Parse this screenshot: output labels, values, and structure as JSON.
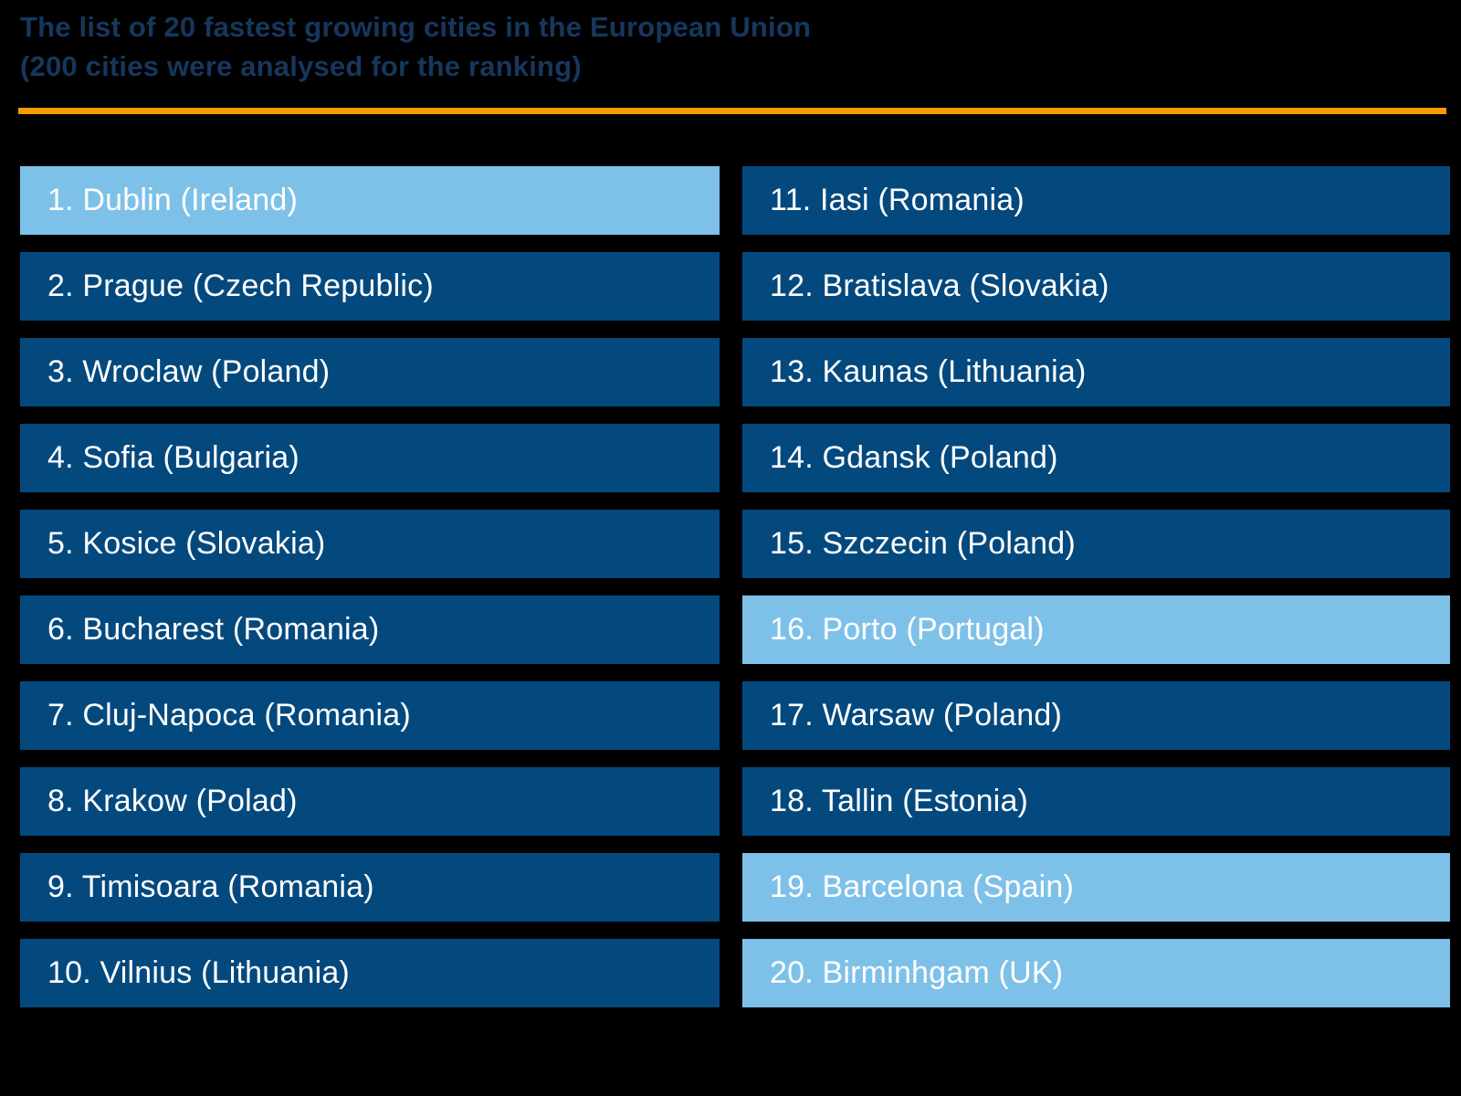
{
  "header": {
    "title_line1": "The list of 20 fastest growing cities in the European Union",
    "title_line2": "(200 cities were analysed for the ranking)"
  },
  "colors": {
    "background": "#000000",
    "title_text": "#17375D",
    "divider_orange": "#F59C00",
    "bar_dark_blue": "#04497E",
    "bar_light_blue": "#7EC1E8",
    "bar_text": "#FFFFFF"
  },
  "list": {
    "items": [
      {
        "label": "1. Dublin (Ireland)",
        "highlighted": true
      },
      {
        "label": "2. Prague (Czech Republic)",
        "highlighted": false
      },
      {
        "label": "3. Wroclaw (Poland)",
        "highlighted": false
      },
      {
        "label": "4. Sofia (Bulgaria)",
        "highlighted": false
      },
      {
        "label": "5. Kosice (Slovakia)",
        "highlighted": false
      },
      {
        "label": "6. Bucharest (Romania)",
        "highlighted": false
      },
      {
        "label": "7. Cluj-Napoca (Romania)",
        "highlighted": false
      },
      {
        "label": "8. Krakow (Polad)",
        "highlighted": false
      },
      {
        "label": "9. Timisoara (Romania)",
        "highlighted": false
      },
      {
        "label": "10. Vilnius (Lithuania)",
        "highlighted": false
      },
      {
        "label": "11. Iasi (Romania)",
        "highlighted": false
      },
      {
        "label": "12. Bratislava (Slovakia)",
        "highlighted": false
      },
      {
        "label": "13. Kaunas (Lithuania)",
        "highlighted": false
      },
      {
        "label": "14. Gdansk (Poland)",
        "highlighted": false
      },
      {
        "label": "15. Szczecin (Poland)",
        "highlighted": false
      },
      {
        "label": "16. Porto (Portugal)",
        "highlighted": true
      },
      {
        "label": "17. Warsaw (Poland)",
        "highlighted": false
      },
      {
        "label": "18. Tallin (Estonia)",
        "highlighted": false
      },
      {
        "label": "19. Barcelona (Spain)",
        "highlighted": true
      },
      {
        "label": "20. Birminhgam (UK)",
        "highlighted": true
      }
    ]
  },
  "chart_data": {
    "type": "table",
    "title": "The list of 20 fastest growing cities in the European Union",
    "subtitle": "(200 cities were analysed for the ranking)",
    "layout": "two-column ranking list, ranks 1-10 left, 11-20 right",
    "highlight_color": "#7EC1E8",
    "bar_color": "#04497E",
    "entries": [
      {
        "rank": 1,
        "city": "Dublin",
        "country": "Ireland",
        "highlighted": true
      },
      {
        "rank": 2,
        "city": "Prague",
        "country": "Czech Republic",
        "highlighted": false
      },
      {
        "rank": 3,
        "city": "Wroclaw",
        "country": "Poland",
        "highlighted": false
      },
      {
        "rank": 4,
        "city": "Sofia",
        "country": "Bulgaria",
        "highlighted": false
      },
      {
        "rank": 5,
        "city": "Kosice",
        "country": "Slovakia",
        "highlighted": false
      },
      {
        "rank": 6,
        "city": "Bucharest",
        "country": "Romania",
        "highlighted": false
      },
      {
        "rank": 7,
        "city": "Cluj-Napoca",
        "country": "Romania",
        "highlighted": false
      },
      {
        "rank": 8,
        "city": "Krakow",
        "country": "Polad",
        "highlighted": false
      },
      {
        "rank": 9,
        "city": "Timisoara",
        "country": "Romania",
        "highlighted": false
      },
      {
        "rank": 10,
        "city": "Vilnius",
        "country": "Lithuania",
        "highlighted": false
      },
      {
        "rank": 11,
        "city": "Iasi",
        "country": "Romania",
        "highlighted": false
      },
      {
        "rank": 12,
        "city": "Bratislava",
        "country": "Slovakia",
        "highlighted": false
      },
      {
        "rank": 13,
        "city": "Kaunas",
        "country": "Lithuania",
        "highlighted": false
      },
      {
        "rank": 14,
        "city": "Gdansk",
        "country": "Poland",
        "highlighted": false
      },
      {
        "rank": 15,
        "city": "Szczecin",
        "country": "Poland",
        "highlighted": false
      },
      {
        "rank": 16,
        "city": "Porto",
        "country": "Portugal",
        "highlighted": true
      },
      {
        "rank": 17,
        "city": "Warsaw",
        "country": "Poland",
        "highlighted": false
      },
      {
        "rank": 18,
        "city": "Tallin",
        "country": "Estonia",
        "highlighted": false
      },
      {
        "rank": 19,
        "city": "Barcelona",
        "country": "Spain",
        "highlighted": true
      },
      {
        "rank": 20,
        "city": "Birminhgam",
        "country": "UK",
        "highlighted": true
      }
    ]
  }
}
